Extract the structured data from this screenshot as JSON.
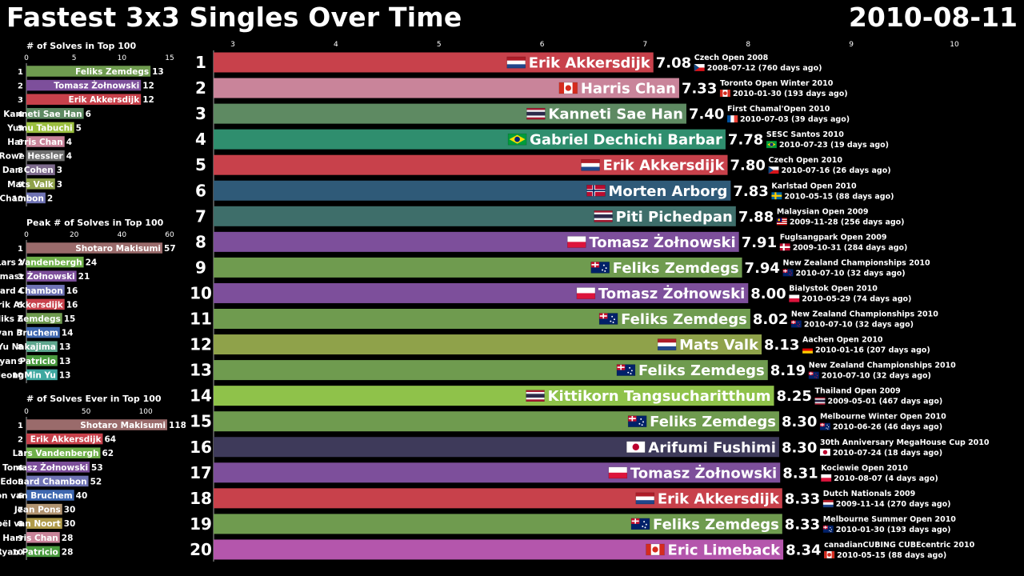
{
  "title": "Fastest 3x3 Singles Over Time",
  "date": "2010-08-11",
  "colors": {
    "feliks": "#6f9b4f",
    "tomasz": "#7d4f9b",
    "erik": "#c8414b",
    "kanneti": "#5e8a62",
    "yumu": "#9bbf3f",
    "harris": "#c9849a",
    "rowe": "#6e6e6e",
    "dan": "#7d6a8c",
    "mats": "#8fa24a",
    "edouard": "#6f73b4",
    "shotaro": "#9a6b6b",
    "lars": "#6fb04a",
    "ron": "#3f68b0",
    "yu": "#5fa88f",
    "ryan": "#4a9b3f",
    "jeongmin": "#3fa8a0",
    "jean": "#b09370",
    "joel": "#b09b4a",
    "gabriel": "#2f8e6e",
    "morten": "#2f5a78",
    "piti": "#3e6e6a",
    "kittikorn": "#8fc24a",
    "arifumi": "#3e3a5a",
    "eric": "#b456ac"
  },
  "chart_data": [
    {
      "type": "bar",
      "title": "# of Solves in Top 100",
      "xlim": [
        0,
        15
      ],
      "ticks": [
        0,
        5,
        10,
        15
      ],
      "ranks": [
        "1",
        "2",
        "3",
        "4",
        "5",
        "6",
        "7",
        "8",
        "9",
        "10"
      ],
      "categories": [
        "Feliks Zemdegs",
        "Tomasz Żołnowski",
        "Erik Akkersdijk",
        "Kanneti Sae Han",
        "Yumu Tabuchi",
        "Harris Chan",
        "Rowe Hessler",
        "Dan Cohen",
        "Mats Valk",
        "Edouard Chambon"
      ],
      "values": [
        13,
        12,
        12,
        6,
        5,
        4,
        4,
        3,
        3,
        2
      ],
      "color_keys": [
        "feliks",
        "tomasz",
        "erik",
        "kanneti",
        "yumu",
        "harris",
        "rowe",
        "dan",
        "mats",
        "edouard"
      ]
    },
    {
      "type": "bar",
      "title": "Peak # of Solves in Top 100",
      "xlim": [
        0,
        60
      ],
      "ticks": [
        0,
        20,
        40,
        60
      ],
      "ranks": [
        "1",
        "2",
        "3",
        "4",
        "5",
        "6",
        "7",
        "8",
        "9",
        "10"
      ],
      "categories": [
        "Shotaro Makisumi",
        "Lars Vandenbergh",
        "Tomasz Żołnowski",
        "Edouard Chambon",
        "Erik Akkersdijk",
        "Feliks Zemdegs",
        "Ron van Bruchem",
        "Yu Nakajima",
        "Ryan Patricio",
        "JeongMin Yu"
      ],
      "values": [
        57,
        24,
        21,
        16,
        16,
        15,
        14,
        13,
        13,
        13
      ],
      "color_keys": [
        "shotaro",
        "lars",
        "tomasz",
        "edouard",
        "erik",
        "feliks",
        "ron",
        "yu",
        "ryan",
        "jeongmin"
      ]
    },
    {
      "type": "bar",
      "title": "# of Solves Ever in Top 100",
      "xlim": [
        0,
        120
      ],
      "ticks": [
        0,
        50,
        100
      ],
      "ranks": [
        "1",
        "2",
        "3",
        "4",
        "5",
        "6",
        "7",
        "8",
        "9",
        "10"
      ],
      "categories": [
        "Shotaro Makisumi",
        "Erik Akkersdijk",
        "Lars Vandenbergh",
        "Tomasz Żołnowski",
        "Edouard Chambon",
        "Ron van Bruchem",
        "Jean Pons",
        "Joël van Noort",
        "Harris Chan",
        "Ryan Patricio"
      ],
      "values": [
        118,
        64,
        62,
        53,
        52,
        40,
        30,
        30,
        28,
        28
      ],
      "color_keys": [
        "shotaro",
        "erik",
        "lars",
        "tomasz",
        "edouard",
        "ron",
        "jean",
        "joel",
        "harris",
        "ryan"
      ]
    },
    {
      "type": "bar",
      "xlim": [
        3,
        10
      ],
      "ticks": [
        3,
        4,
        5,
        6,
        7,
        8,
        9,
        10
      ],
      "ranks": [
        "1",
        "2",
        "3",
        "4",
        "5",
        "6",
        "7",
        "8",
        "9",
        "10",
        "11",
        "12",
        "13",
        "14",
        "15",
        "16",
        "17",
        "18",
        "19",
        "20"
      ],
      "categories": [
        "Erik Akkersdijk",
        "Harris Chan",
        "Kanneti Sae Han",
        "Gabriel Dechichi Barbar",
        "Erik Akkersdijk",
        "Morten Arborg",
        "Piti Pichedpan",
        "Tomasz Żołnowski",
        "Feliks Zemdegs",
        "Tomasz Żołnowski",
        "Feliks Zemdegs",
        "Mats Valk",
        "Feliks Zemdegs",
        "Kittikorn Tangsucharitthum",
        "Feliks Zemdegs",
        "Arifumi Fushimi",
        "Tomasz Żołnowski",
        "Erik Akkersdijk",
        "Feliks Zemdegs",
        "Eric Limeback"
      ],
      "values": [
        7.08,
        7.33,
        7.4,
        7.78,
        7.8,
        7.83,
        7.88,
        7.91,
        7.94,
        8.0,
        8.02,
        8.13,
        8.19,
        8.25,
        8.3,
        8.3,
        8.31,
        8.33,
        8.33,
        8.34
      ],
      "value_labels": [
        "7.08",
        "7.33",
        "7.40",
        "7.78",
        "7.80",
        "7.83",
        "7.88",
        "7.91",
        "7.94",
        "8.00",
        "8.02",
        "8.13",
        "8.19",
        "8.25",
        "8.30",
        "8.30",
        "8.31",
        "8.33",
        "8.33",
        "8.34"
      ],
      "flags": [
        "nl",
        "ca",
        "th",
        "br",
        "nl",
        "no",
        "th",
        "pl",
        "au",
        "pl",
        "au",
        "nl",
        "au",
        "th",
        "au",
        "jp",
        "pl",
        "nl",
        "au",
        "ca"
      ],
      "comp_flags": [
        "cz",
        "ca",
        "fr",
        "br",
        "cz",
        "se",
        "my",
        "dk",
        "nz",
        "pl",
        "nz",
        "de",
        "nz",
        "th",
        "au",
        "jp",
        "pl",
        "nl",
        "au",
        "ca"
      ],
      "competitions": [
        "Czech Open 2008",
        "Toronto Open Winter 2010",
        "First Chamal'Open 2010",
        "SESC Santos 2010",
        "Czech Open 2010",
        "Karlstad Open 2010",
        "Malaysian Open 2009",
        "Fuglsangpark Open 2009",
        "New Zealand Championships 2010",
        "Bialystok Open 2010",
        "New Zealand Championships 2010",
        "Aachen Open 2010",
        "New Zealand Championships 2010",
        "Thailand Open 2009",
        "Melbourne Winter Open 2010",
        "30th Anniversary MegaHouse Cup 2010",
        "Kociewie Open 2010",
        "Dutch Nationals 2009",
        "Melbourne Summer Open 2010",
        "canadianCUBING CUBEcentric 2010"
      ],
      "comp_dates": [
        "2008-07-12 (760 days ago)",
        "2010-01-30 (193 days ago)",
        "2010-07-03 (39 days ago)",
        "2010-07-23 (19 days ago)",
        "2010-07-16 (26 days ago)",
        "2010-05-15 (88 days ago)",
        "2009-11-28 (256 days ago)",
        "2009-10-31 (284 days ago)",
        "2010-07-10 (32 days ago)",
        "2010-05-29 (74 days ago)",
        "2010-07-10 (32 days ago)",
        "2010-01-16 (207 days ago)",
        "2010-07-10 (32 days ago)",
        "2009-05-01 (467 days ago)",
        "2010-06-26 (46 days ago)",
        "2010-07-24 (18 days ago)",
        "2010-08-07 (4 days ago)",
        "2009-11-14 (270 days ago)",
        "2010-01-30 (193 days ago)",
        "2010-05-15 (88 days ago)"
      ],
      "color_keys": [
        "erik",
        "harris",
        "kanneti",
        "gabriel",
        "erik",
        "morten",
        "piti",
        "tomasz",
        "feliks",
        "tomasz",
        "feliks",
        "mats",
        "feliks",
        "kittikorn",
        "feliks",
        "arifumi",
        "tomasz",
        "erik",
        "feliks",
        "eric"
      ]
    }
  ]
}
